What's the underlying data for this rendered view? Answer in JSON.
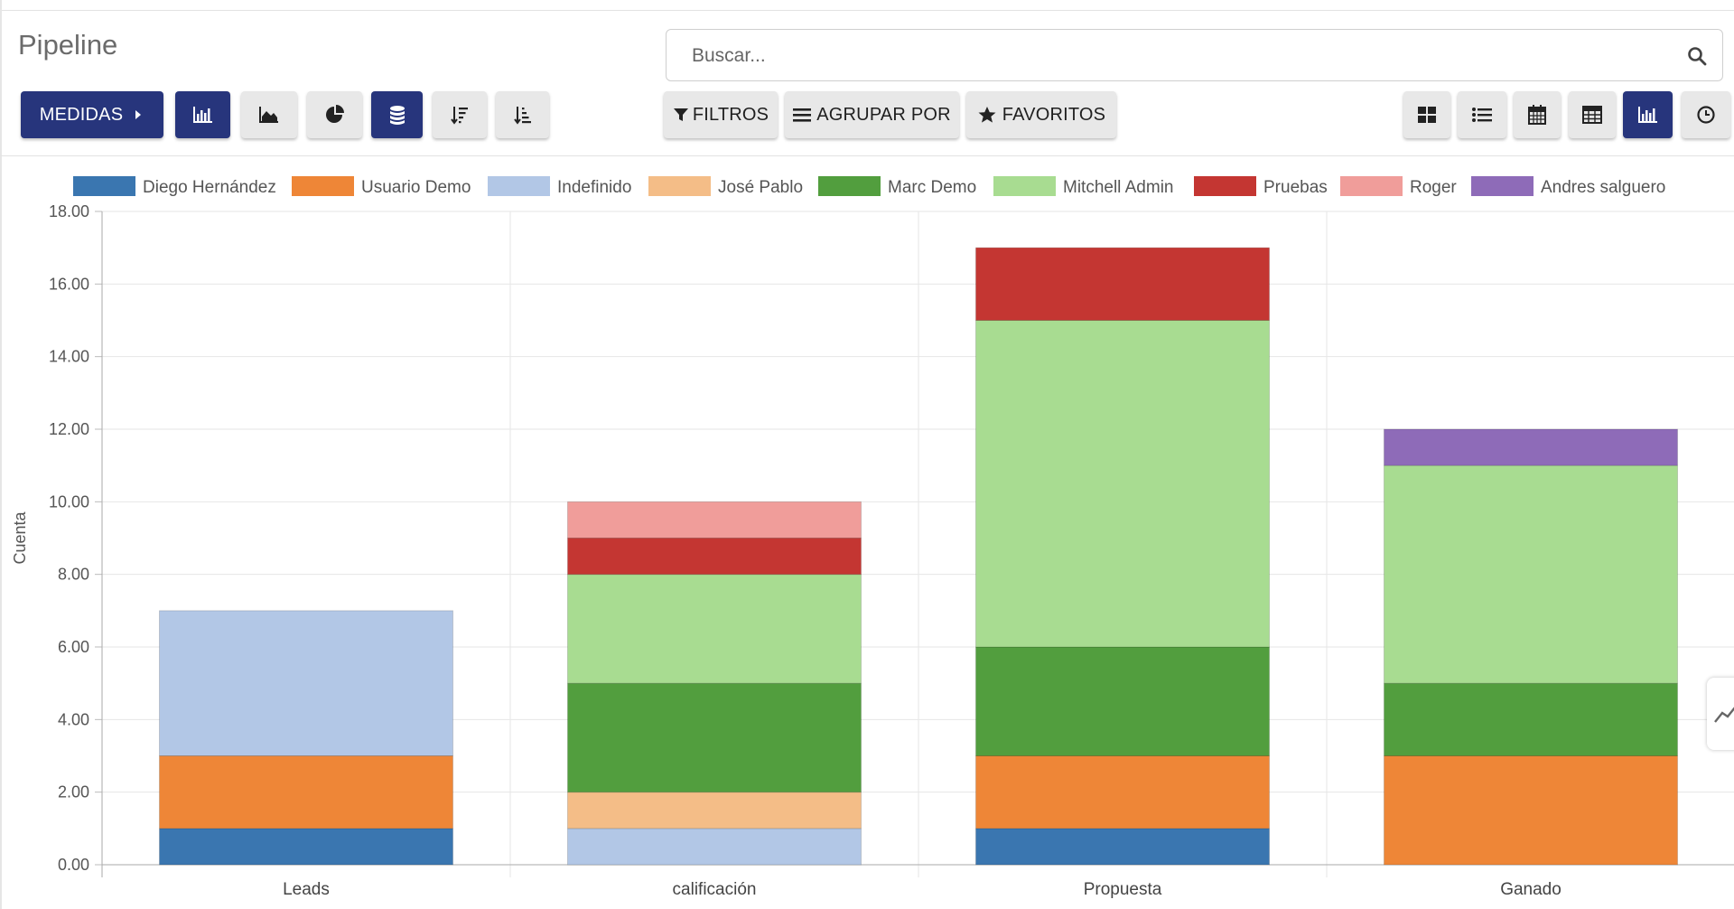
{
  "header": {
    "title": "Pipeline",
    "search_placeholder": "Buscar..."
  },
  "toolbar": {
    "measures_label": "MEDIDAS",
    "filters_label": "FILTROS",
    "group_by_label": "AGRUPAR POR",
    "favorites_label": "FAVORITOS",
    "chart_mode_icons": [
      "bar-chart-icon",
      "area-chart-icon",
      "pie-chart-icon",
      "stack-icon",
      "sort-desc-icon",
      "sort-asc-icon"
    ],
    "view_icons": [
      "kanban-icon",
      "list-icon",
      "calendar-icon",
      "pivot-icon",
      "graph-icon",
      "activity-clock-icon"
    ]
  },
  "colors": {
    "primary": "#27357c",
    "button_light": "#e8e8e8"
  },
  "chart_data": {
    "type": "bar",
    "stacked": true,
    "ylabel": "Cuenta",
    "xlabel": "",
    "ylim": [
      0,
      18
    ],
    "yticks": [
      "0.00",
      "2.00",
      "4.00",
      "6.00",
      "8.00",
      "10.00",
      "12.00",
      "14.00",
      "16.00",
      "18.00"
    ],
    "categories": [
      "Leads",
      "calificación",
      "Propuesta",
      "Ganado"
    ],
    "legend_position": "top",
    "grid": true,
    "series": [
      {
        "name": "Diego Hernández",
        "color": "#3a76b0",
        "values": [
          1,
          0,
          1,
          0
        ]
      },
      {
        "name": "Usuario Demo",
        "color": "#ee8637",
        "values": [
          2,
          0,
          2,
          3
        ]
      },
      {
        "name": "Indefinido",
        "color": "#b2c7e6",
        "values": [
          4,
          1,
          0,
          0
        ]
      },
      {
        "name": "José Pablo",
        "color": "#f4bd87",
        "values": [
          0,
          1,
          0,
          0
        ]
      },
      {
        "name": "Marc Demo",
        "color": "#529e3e",
        "values": [
          0,
          3,
          3,
          2
        ]
      },
      {
        "name": "Mitchell Admin",
        "color": "#a8dc91",
        "values": [
          0,
          3,
          9,
          6
        ]
      },
      {
        "name": "Pruebas",
        "color": "#c43632",
        "values": [
          0,
          1,
          2,
          0
        ]
      },
      {
        "name": "Roger",
        "color": "#f09d9a",
        "values": [
          0,
          1,
          0,
          0
        ]
      },
      {
        "name": "Andres salguero",
        "color": "#8e6bb8",
        "values": [
          0,
          0,
          0,
          1
        ]
      }
    ]
  }
}
